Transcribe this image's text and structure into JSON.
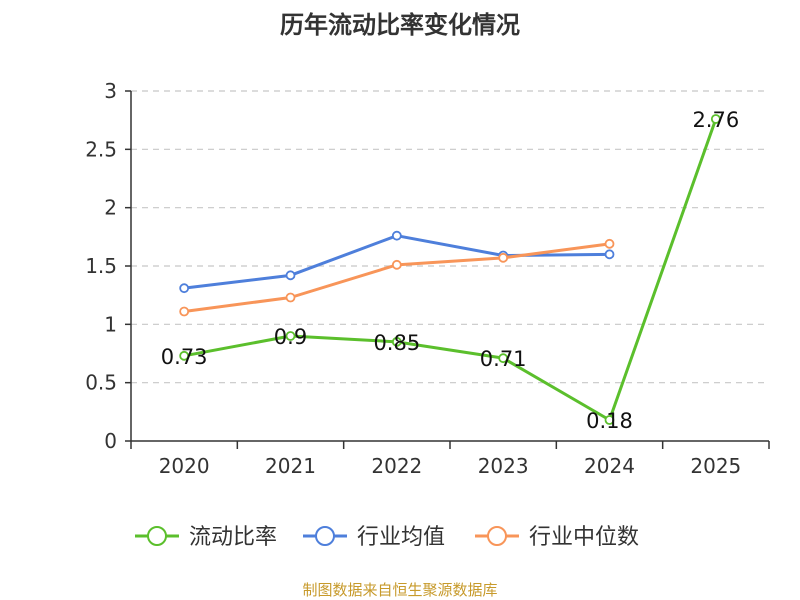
{
  "chart_data": {
    "type": "line",
    "title": "历年流动比率变化情况",
    "categories": [
      "2020",
      "2021",
      "2022",
      "2023",
      "2024",
      "2025"
    ],
    "y_ticks": [
      "0",
      "0.5",
      "1",
      "1.5",
      "2",
      "2.5",
      "3"
    ],
    "ylim": [
      0,
      3
    ],
    "grid": true,
    "legend_position": "bottom",
    "series": [
      {
        "name": "流动比率",
        "color": "#5bbf2c",
        "values": [
          0.73,
          0.9,
          0.85,
          0.71,
          0.18,
          2.76
        ],
        "labels": [
          "0.73",
          "0.9",
          "0.85",
          "0.71",
          "0.18",
          "2.76"
        ]
      },
      {
        "name": "行业均值",
        "color": "#4e7fdb",
        "values": [
          1.31,
          1.42,
          1.76,
          1.59,
          1.6,
          null
        ]
      },
      {
        "name": "行业中位数",
        "color": "#f89559",
        "values": [
          1.11,
          1.23,
          1.51,
          1.57,
          1.69,
          null
        ]
      }
    ]
  },
  "source": "制图数据来自恒生聚源数据库",
  "colors": {
    "axis": "#333333",
    "grid": "#c8c8c8",
    "source": "#c79a2b"
  }
}
